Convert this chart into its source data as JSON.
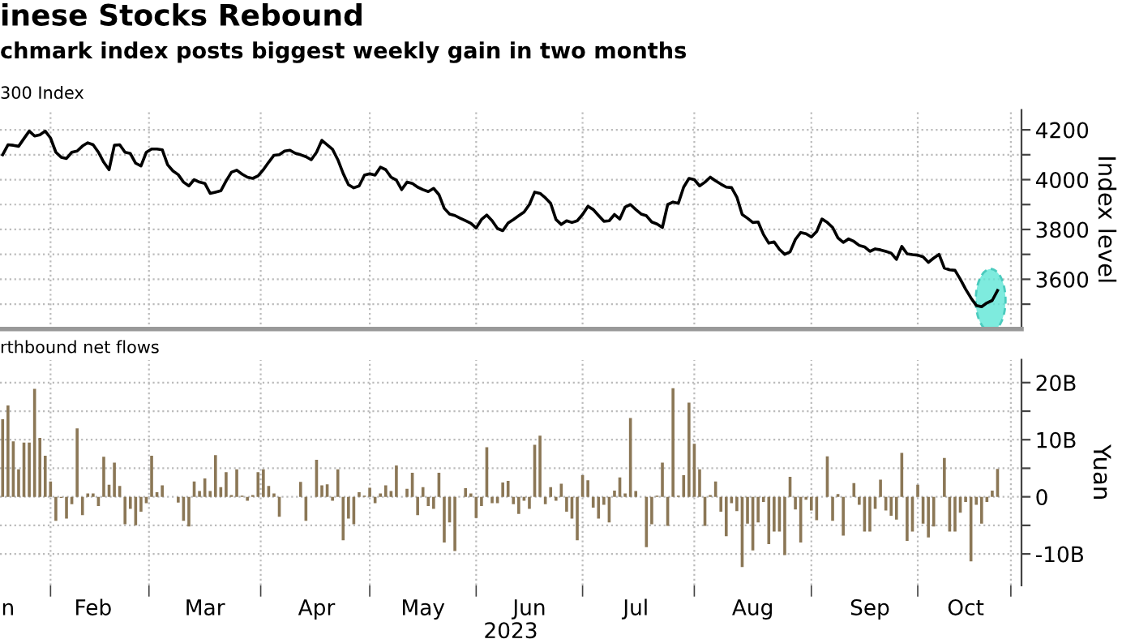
{
  "chart_data": [
    {
      "type": "line",
      "title": "inese Stocks Rebound",
      "subtitle": "chmark index posts biggest weekly gain in two months",
      "annotations": [
        "300 Index"
      ],
      "ylabel": "Index level",
      "categories": [
        null,
        null,
        null,
        null,
        null,
        null,
        null,
        null,
        null,
        null,
        null,
        null,
        null,
        null,
        null,
        null,
        null,
        null,
        null,
        null,
        null,
        null,
        null,
        null,
        null,
        null,
        null,
        null,
        null,
        null,
        null,
        null,
        null,
        null,
        null,
        null,
        null,
        null,
        null,
        null,
        null,
        null,
        null,
        null,
        null,
        null,
        null,
        null,
        null,
        null,
        null,
        null,
        null,
        null,
        null,
        null,
        null,
        null,
        null,
        null,
        null,
        null,
        null,
        null,
        null,
        null,
        null,
        null,
        null,
        null,
        null,
        null,
        null,
        null,
        null,
        null,
        null,
        null,
        null,
        null,
        null,
        null,
        null,
        null,
        null,
        null,
        null,
        null,
        null,
        null,
        null,
        null,
        null,
        null,
        null,
        null,
        null,
        null,
        null,
        null,
        null,
        null,
        null,
        null,
        null,
        null,
        null,
        null,
        null,
        null,
        null,
        null,
        null,
        null,
        null,
        null,
        null,
        null,
        null,
        null,
        null,
        null,
        null,
        null,
        null,
        null,
        null,
        null,
        null,
        null,
        null,
        null,
        null,
        null,
        null,
        null,
        null,
        null,
        null,
        null,
        null,
        null,
        null,
        null,
        null,
        null,
        null,
        null,
        null,
        null,
        null,
        null,
        null,
        null,
        null,
        null,
        null,
        null,
        null,
        null,
        null,
        null,
        null,
        null,
        null,
        null,
        null,
        null,
        null,
        null,
        null,
        null,
        null,
        null,
        null,
        null,
        null,
        null,
        null,
        null,
        null,
        null,
        null,
        null,
        null,
        null,
        null,
        null,
        null,
        null,
        null,
        null
      ],
      "series": [
        {
          "color": "#000000",
          "values": [
            4100,
            4140,
            4138,
            4134,
            4165,
            4195,
            4175,
            4180,
            4195,
            4167,
            4110,
            4090,
            4085,
            4110,
            4115,
            4135,
            4148,
            4140,
            4110,
            4070,
            4040,
            4138,
            4140,
            4110,
            4105,
            4066,
            4055,
            4110,
            4123,
            4123,
            4120,
            4060,
            4035,
            4020,
            3990,
            3975,
            4000,
            3990,
            3985,
            3945,
            3950,
            3955,
            3995,
            4030,
            4038,
            4022,
            4010,
            4005,
            4015,
            4040,
            4070,
            4098,
            4100,
            4115,
            4118,
            4106,
            4100,
            4092,
            4080,
            4110,
            4158,
            4140,
            4122,
            4080,
            4025,
            3980,
            3967,
            3975,
            4018,
            4024,
            4018,
            4050,
            4040,
            4010,
            3998,
            3960,
            3990,
            3985,
            3970,
            3960,
            3952,
            3965,
            3940,
            3885,
            3862,
            3856,
            3845,
            3835,
            3825,
            3806,
            3840,
            3858,
            3835,
            3804,
            3795,
            3826,
            3840,
            3855,
            3870,
            3900,
            3950,
            3945,
            3927,
            3905,
            3840,
            3820,
            3835,
            3828,
            3835,
            3860,
            3893,
            3880,
            3856,
            3833,
            3835,
            3860,
            3842,
            3890,
            3900,
            3880,
            3862,
            3855,
            3830,
            3822,
            3808,
            3900,
            3910,
            3905,
            3970,
            4005,
            4000,
            3975,
            3990,
            4010,
            3995,
            3982,
            3970,
            3968,
            3930,
            3860,
            3845,
            3828,
            3830,
            3780,
            3745,
            3750,
            3720,
            3700,
            3710,
            3760,
            3788,
            3783,
            3770,
            3792,
            3842,
            3828,
            3808,
            3766,
            3748,
            3762,
            3752,
            3736,
            3730,
            3712,
            3722,
            3718,
            3712,
            3705,
            3680,
            3732,
            3702,
            3699,
            3697,
            3690,
            3668,
            3685,
            3700,
            3645,
            3638,
            3636,
            3600,
            3560,
            3525,
            3495,
            3490,
            3505,
            3515,
            3555,
            null,
            null,
            null,
            null
          ]
        }
      ],
      "ylim": [
        3400,
        4280
      ],
      "yticks": [
        {
          "value": 3500,
          "label": null
        },
        3600,
        {
          "value": 3700,
          "label": null
        },
        3800,
        {
          "value": 3900,
          "label": null
        },
        4000,
        {
          "value": 4100,
          "label": null
        },
        4200
      ],
      "grid": true,
      "tick_labels": "y"
    },
    {
      "type": "bar",
      "title": "rthbound net flows",
      "xlabel": "2023",
      "ylabel": "Yuan",
      "categories": [
        null,
        "n",
        null,
        null,
        null,
        null,
        null,
        null,
        null,
        null,
        null,
        null,
        null,
        null,
        null,
        null,
        null,
        "Feb",
        null,
        null,
        null,
        null,
        null,
        null,
        null,
        null,
        null,
        null,
        null,
        null,
        null,
        null,
        null,
        null,
        null,
        null,
        null,
        null,
        "Mar",
        null,
        null,
        null,
        null,
        null,
        null,
        null,
        null,
        null,
        null,
        null,
        null,
        null,
        null,
        null,
        null,
        null,
        null,
        null,
        null,
        "Apr",
        null,
        null,
        null,
        null,
        null,
        null,
        null,
        null,
        null,
        null,
        null,
        null,
        null,
        null,
        null,
        null,
        null,
        null,
        null,
        "May",
        null,
        null,
        null,
        null,
        null,
        null,
        null,
        null,
        null,
        null,
        null,
        null,
        null,
        null,
        null,
        null,
        null,
        null,
        null,
        "Jun",
        null,
        null,
        null,
        null,
        null,
        null,
        null,
        null,
        null,
        null,
        null,
        null,
        null,
        null,
        null,
        null,
        null,
        null,
        null,
        "Jul",
        null,
        null,
        null,
        null,
        null,
        null,
        null,
        null,
        null,
        null,
        null,
        null,
        null,
        null,
        null,
        null,
        null,
        null,
        null,
        null,
        null,
        "Aug",
        null,
        null,
        null,
        null,
        null,
        null,
        null,
        null,
        null,
        null,
        null,
        null,
        null,
        null,
        null,
        null,
        null,
        null,
        null,
        null,
        null,
        "Sep",
        null,
        null,
        null,
        null,
        null,
        null,
        null,
        null,
        null,
        null,
        null,
        null,
        null,
        null,
        null,
        null,
        null,
        "Oct",
        null,
        null,
        null,
        null,
        null,
        null,
        null,
        null,
        null,
        null
      ],
      "series": [
        {
          "color": "#8b7756",
          "values": [
            13.6,
            16.0,
            9.7,
            4.8,
            9.5,
            9.5,
            18.9,
            10.3,
            7.2,
            2.7,
            -4.2,
            -0.2,
            -3.8,
            -1.3,
            12.0,
            -3.2,
            0.6,
            0.6,
            -1.6,
            7.0,
            2.1,
            6.0,
            1.9,
            -4.8,
            -2.1,
            -5.0,
            -2.6,
            -1.1,
            7.2,
            0.8,
            2.0,
            null,
            null,
            -1.0,
            -4.2,
            -5.2,
            2.7,
            1.0,
            3.2,
            1.0,
            7.3,
            1.7,
            4.3,
            0.3,
            4.8,
            0.2,
            -0.7,
            0.3,
            4.3,
            4.8,
            1.9,
            0.6,
            -3.5,
            null,
            null,
            null,
            2.6,
            -4.2,
            null,
            6.5,
            2.0,
            2.2,
            -0.7,
            4.8,
            -7.6,
            -3.8,
            -4.8,
            0.8,
            0.2,
            1.6,
            -1.1,
            0.6,
            2.0,
            1.0,
            5.5,
            null,
            1.4,
            4.2,
            -3.2,
            1.7,
            -1.6,
            -2.1,
            4.2,
            -8.0,
            -4.5,
            -9.5,
            null,
            1.5,
            0.6,
            -3.7,
            -1.6,
            8.7,
            -1.1,
            -1.1,
            2.5,
            2.8,
            -1.3,
            -3.0,
            -0.7,
            -2.1,
            9.1,
            10.7,
            -1.3,
            1.7,
            -0.7,
            2.3,
            -2.6,
            -3.8,
            -7.6,
            3.8,
            2.9,
            -1.9,
            -3.8,
            -1.4,
            -4.5,
            1.1,
            3.4,
            0.6,
            13.8,
            1.0,
            null,
            -8.8,
            -4.8,
            0.2,
            6.0,
            -5.1,
            19.0,
            0.2,
            3.8,
            16.5,
            9.3,
            4.8,
            -5.1,
            0.3,
            2.7,
            -2.6,
            -6.9,
            -1.1,
            -2.5,
            -12.3,
            -4.7,
            -9.4,
            -4.5,
            -0.9,
            -8.3,
            -6.1,
            -6.1,
            -10.2,
            3.5,
            -2.2,
            -8.0,
            -0.5,
            -2.4,
            -4.1,
            null,
            7.1,
            -4.2,
            0.5,
            -6.8,
            null,
            2.4,
            -1.4,
            -6.1,
            -6.1,
            -2.1,
            3.0,
            -2.4,
            -3.3,
            -4.0,
            7.7,
            -7.7,
            -6.1,
            2.1,
            -4.7,
            -7.1,
            -5.2,
            null,
            6.8,
            -6.1,
            -6.1,
            -2.8,
            -0.9,
            -11.3,
            -1.4,
            -4.7,
            -0.9,
            1.1,
            4.9,
            null,
            null,
            null,
            null
          ]
        }
      ],
      "ylim": [
        -15.5,
        24
      ],
      "yticks": [
        {
          "value": -10,
          "label": "-10B"
        },
        {
          "value": -5,
          "label": null
        },
        0,
        {
          "value": 5,
          "label": null
        },
        {
          "value": 10,
          "label": "10B"
        },
        {
          "value": 15,
          "label": null
        },
        {
          "value": 20,
          "label": "20B"
        }
      ],
      "grid": true
    }
  ]
}
